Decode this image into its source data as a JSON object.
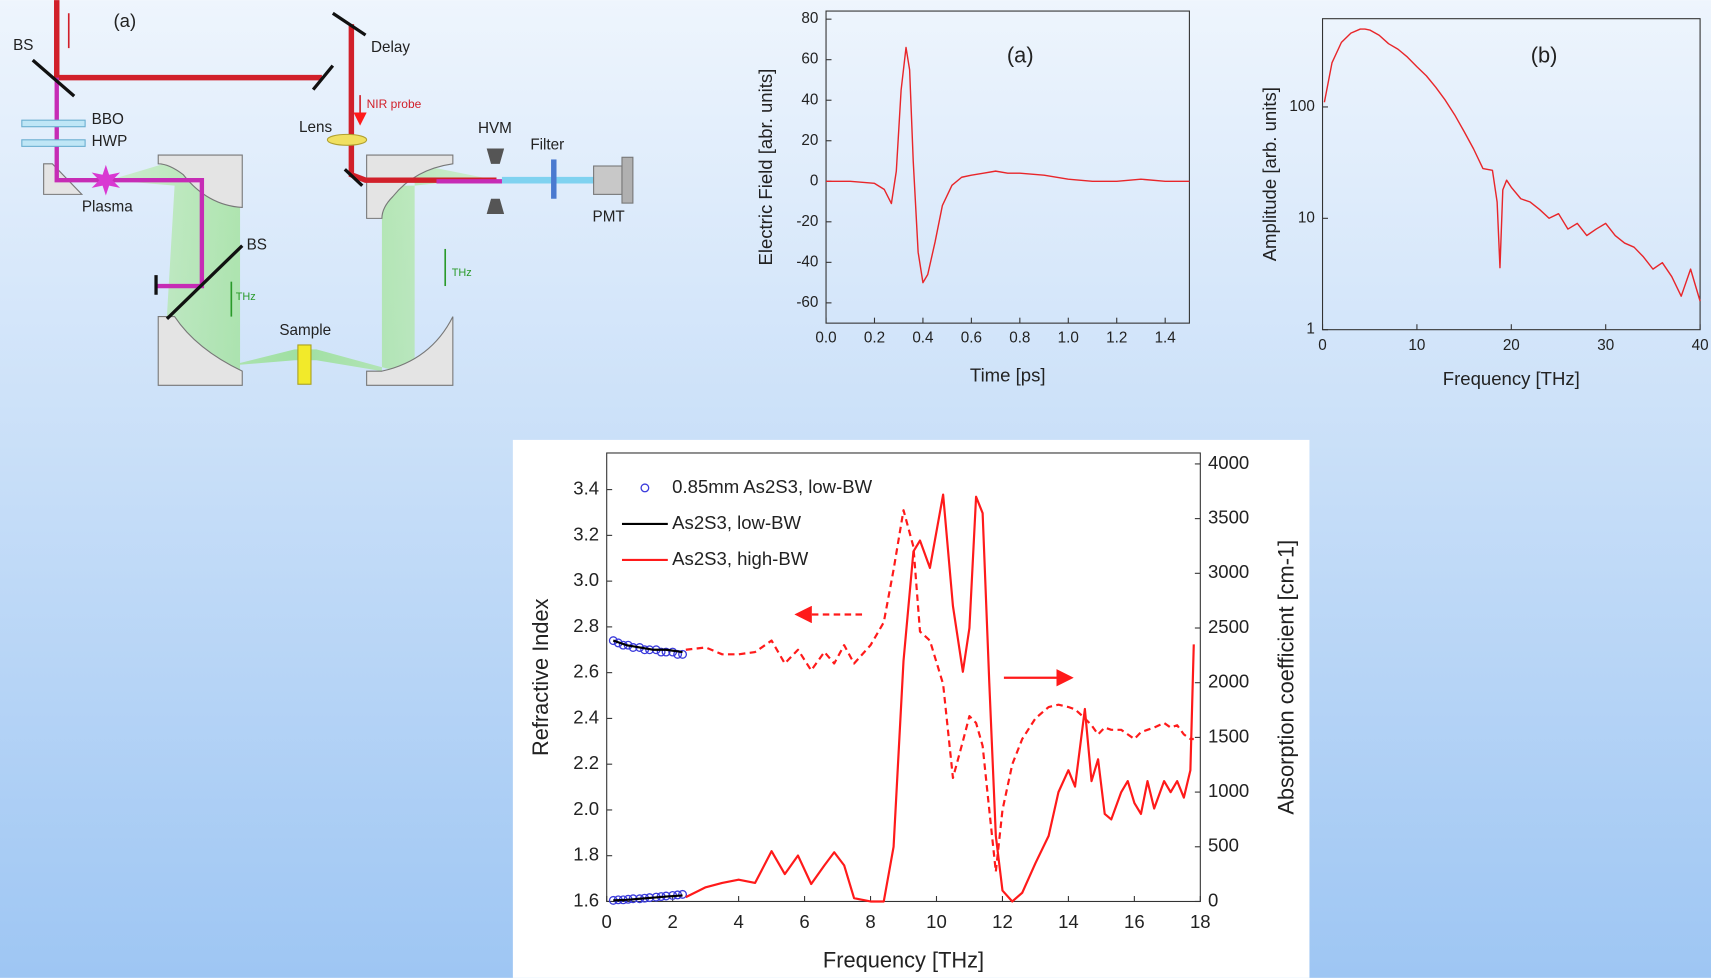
{
  "diagram": {
    "labels": [
      "(a)",
      "BS",
      "Delay",
      "NIR probe",
      "Lens",
      "BBO",
      "HWP",
      "Plasma",
      "HVM",
      "Filter",
      "PMT",
      "BS",
      "THz",
      "Sample",
      "THz"
    ]
  },
  "chart_data": [
    {
      "type": "line",
      "title": "(a)",
      "x_label": "Time [ps]",
      "y_label": "Electric Field [abr. units]",
      "xlim": [
        0,
        1.5
      ],
      "xticks": [
        {
          "value": 0,
          "label": "0.0"
        },
        0.2,
        0.4,
        0.6,
        0.8,
        {
          "value": 1,
          "label": "1.0"
        },
        1.2,
        1.4
      ],
      "ylim": [
        -70,
        84
      ],
      "yticks": [
        -60,
        -40,
        -20,
        0,
        20,
        40,
        60,
        80
      ],
      "x": [
        0,
        0.1,
        0.2,
        0.24,
        0.27,
        0.29,
        0.31,
        0.33,
        0.345,
        0.36,
        0.38,
        0.4,
        0.42,
        0.45,
        0.48,
        0.52,
        0.56,
        0.6,
        0.65,
        0.7,
        0.75,
        0.8,
        0.9,
        1.0,
        1.1,
        1.2,
        1.3,
        1.4,
        1.5
      ],
      "series": [
        {
          "color": "#e8262a",
          "values": [
            0,
            0,
            -1,
            -4,
            -11,
            5,
            45,
            66,
            55,
            10,
            -35,
            -50,
            -46,
            -30,
            -12,
            -2,
            2,
            3,
            4,
            5,
            4,
            4,
            3,
            1,
            0,
            0,
            1,
            0,
            0
          ]
        }
      ]
    },
    {
      "type": "line",
      "title": "(b)",
      "x_label": "Frequency [THz]",
      "y_label": "Amplitude [arb. units]",
      "log_y": true,
      "xlim": [
        0,
        40
      ],
      "xticks": [
        0,
        10,
        20,
        30,
        40
      ],
      "ylim": [
        1,
        620
      ],
      "yticks": [
        1,
        10,
        100
      ],
      "x": [
        0.2,
        1,
        2,
        3,
        4,
        4.5,
        5,
        6,
        7,
        8,
        9,
        10,
        11,
        12,
        13,
        14,
        15,
        16,
        17,
        18,
        18.5,
        18.8,
        19.1,
        19.5,
        20,
        21,
        22,
        23,
        24,
        25,
        26,
        27,
        28,
        29,
        30,
        31,
        32,
        33,
        34,
        35,
        36,
        37,
        38,
        39,
        39.5,
        40
      ],
      "series": [
        {
          "color": "#e8262a",
          "values": [
            110,
            250,
            380,
            460,
            500,
            500,
            490,
            440,
            370,
            330,
            280,
            230,
            190,
            150,
            115,
            85,
            60,
            42,
            28,
            27,
            14,
            3.6,
            18,
            22,
            19,
            15,
            14,
            12,
            10,
            11,
            8,
            9,
            7,
            8,
            9,
            7,
            6,
            5.5,
            4.5,
            3.5,
            4,
            3,
            2,
            3.5,
            2.5,
            1.8
          ]
        }
      ]
    },
    {
      "type": "line",
      "x_label": "Frequency [THz]",
      "y_label": "Refractive Index",
      "y2_label": "Absorption coefficient [cm-1]",
      "legend": "upper left",
      "xlim": [
        0,
        18
      ],
      "xticks": [
        0,
        2,
        4,
        6,
        8,
        10,
        12,
        14,
        16,
        18
      ],
      "ylim": [
        1.6,
        3.56
      ],
      "yticks": [
        1.6,
        1.8,
        {
          "value": 2,
          "label": "2.0"
        },
        2.2,
        2.4,
        2.6,
        2.8,
        {
          "value": 3,
          "label": "3.0"
        },
        3.2,
        3.4
      ],
      "y2lim": [
        0,
        4100
      ],
      "y2ticks": [
        0,
        500,
        1000,
        1500,
        2000,
        2500,
        3000,
        3500,
        4000
      ],
      "series": [
        {
          "name": "0.85mm As2S3, low-BW",
          "color": "#3a3adb",
          "marker": "circle",
          "x": [
            0.2,
            0.35,
            0.5,
            0.65,
            0.8,
            1.0,
            1.15,
            1.3,
            1.5,
            1.65,
            1.8,
            2.0,
            2.15,
            2.3
          ],
          "values": [
            2.74,
            2.73,
            2.72,
            2.72,
            2.71,
            2.71,
            2.7,
            2.7,
            2.7,
            2.69,
            2.69,
            2.69,
            2.68,
            2.68
          ],
          "values_y2": [
            10,
            15,
            15,
            20,
            25,
            25,
            30,
            35,
            40,
            45,
            50,
            55,
            60,
            65
          ]
        },
        {
          "name": "As2S3, low-BW",
          "color": "#000000",
          "x": [
            0.2,
            0.6,
            1.0,
            1.4,
            1.8,
            2.3
          ],
          "values": [
            2.74,
            2.72,
            2.71,
            2.7,
            2.7,
            2.69
          ],
          "values_y2": [
            10,
            15,
            25,
            35,
            45,
            55
          ]
        },
        {
          "name": "As2S3, high-BW",
          "color": "#ff1a1a",
          "linestyle_y": "dashed",
          "x": [
            2.4,
            3.0,
            3.5,
            4.0,
            4.5,
            5.0,
            5.4,
            5.8,
            6.2,
            6.6,
            6.9,
            7.2,
            7.5,
            8.0,
            8.4,
            8.7,
            9.0,
            9.3,
            9.5,
            9.8,
            10.2,
            10.5,
            10.8,
            11.0,
            11.2,
            11.4,
            11.6,
            11.8,
            12.0,
            12.3,
            12.6,
            13.0,
            13.4,
            13.7,
            14.0,
            14.2,
            14.5,
            14.7,
            14.9,
            15.1,
            15.3,
            15.6,
            15.8,
            16.0,
            16.2,
            16.4,
            16.6,
            16.9,
            17.1,
            17.3,
            17.5,
            17.7,
            17.8
          ],
          "values": [
            2.7,
            2.71,
            2.68,
            2.68,
            2.69,
            2.74,
            2.64,
            2.7,
            2.61,
            2.69,
            2.64,
            2.72,
            2.64,
            2.72,
            2.82,
            3.05,
            3.31,
            3.15,
            2.78,
            2.74,
            2.55,
            2.14,
            2.3,
            2.41,
            2.38,
            2.28,
            2.0,
            1.73,
            2.0,
            2.2,
            2.31,
            2.4,
            2.45,
            2.46,
            2.45,
            2.44,
            2.4,
            2.37,
            2.33,
            2.36,
            2.35,
            2.35,
            2.33,
            2.31,
            2.34,
            2.35,
            2.36,
            2.38,
            2.36,
            2.37,
            2.33,
            2.31,
            2.31
          ],
          "values_y2": [
            40,
            130,
            170,
            200,
            170,
            460,
            250,
            420,
            160,
            330,
            450,
            330,
            30,
            0,
            0,
            500,
            2200,
            3200,
            3300,
            3050,
            3720,
            2700,
            2100,
            2500,
            3700,
            3550,
            2000,
            600,
            100,
            0,
            80,
            350,
            600,
            1000,
            1200,
            1050,
            1760,
            1100,
            1300,
            800,
            750,
            1000,
            1100,
            900,
            800,
            1100,
            850,
            1100,
            1000,
            1100,
            950,
            1200,
            2350
          ]
        }
      ]
    }
  ]
}
